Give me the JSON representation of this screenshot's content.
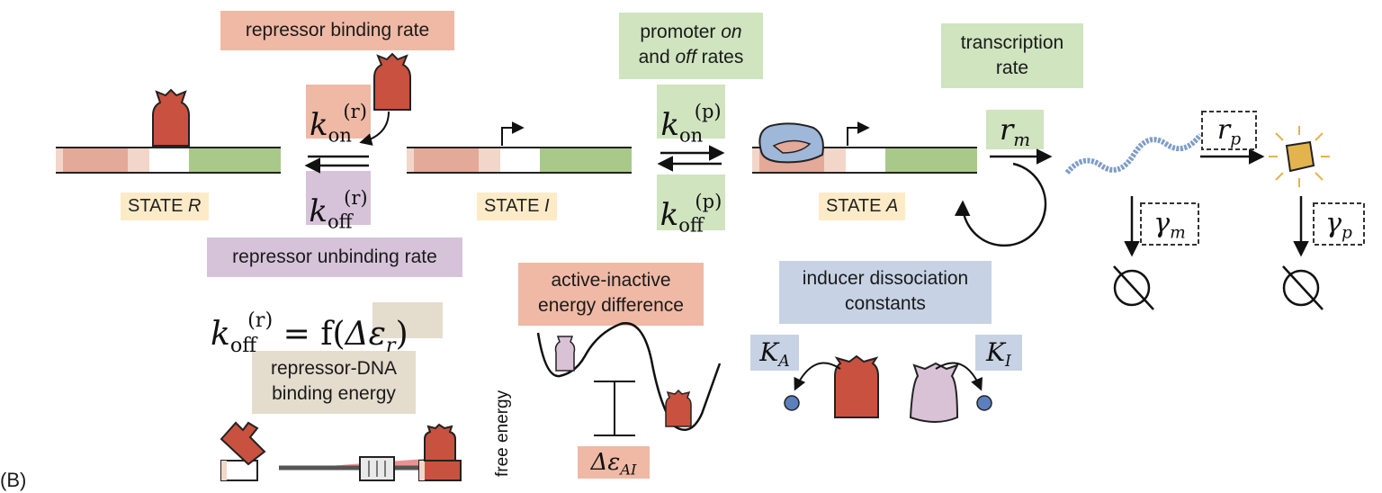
{
  "labels": {
    "repressor_binding_rate": "repressor binding rate",
    "promoter_rates_line1_pre": "promoter ",
    "promoter_rates_line1_em": "on",
    "promoter_rates_line2_pre": "and ",
    "promoter_rates_line2_em": "off",
    "promoter_rates_line2_post": " rates",
    "transcription_rate_line1": "transcription",
    "transcription_rate_line2": "rate",
    "repressor_unbinding_rate": "repressor unbinding rate",
    "repressor_dna_line1": "repressor-DNA",
    "repressor_dna_line2": "binding energy",
    "active_inactive_line1": "active-inactive",
    "active_inactive_line2": "energy difference",
    "inducer_line1": "inducer dissociation",
    "inducer_line2": "constants",
    "free_energy": "free energy",
    "panel_letter": "(B)"
  },
  "states": {
    "r_prefix": "STATE ",
    "r_letter": "R",
    "i_prefix": "STATE ",
    "i_letter": "I",
    "a_prefix": "STATE ",
    "a_letter": "A"
  },
  "math": {
    "k": "k",
    "on": "on",
    "off": "off",
    "r_sup": "(r)",
    "p_sup": "(p)",
    "eq_rhs_pre": " = f(",
    "delta_eps": "Δε",
    "r_sub": "r",
    "close_paren": ")",
    "r_m_r": "r",
    "r_m_sub": "m",
    "r_p_r": "r",
    "r_p_sub": "p",
    "gamma": "γ",
    "gamma_m_sub": "m",
    "gamma_p_sub": "p",
    "delta_eps_ai_sub": "AI",
    "K": "K",
    "KA_sub": "A",
    "KI_sub": "I",
    "null_symbol": "∅"
  },
  "colors": {
    "repressor": "#c9513f",
    "inactive_repressor": "#d9c1d6",
    "polymerase": "#9fb7d8",
    "operator_pink": "#e3a999",
    "operator_light": "#f2d6ca",
    "promoter_green": "#a9c98b",
    "mrna": "#7f9dc8",
    "protein": "#e3b44e",
    "box_salmon": "#efb9a5",
    "box_green": "#cfe4bf",
    "box_purple": "#d6c3d9",
    "box_tan": "#e4dccd",
    "box_blue": "#c7d3e4",
    "box_yellow": "#fdebc8"
  }
}
